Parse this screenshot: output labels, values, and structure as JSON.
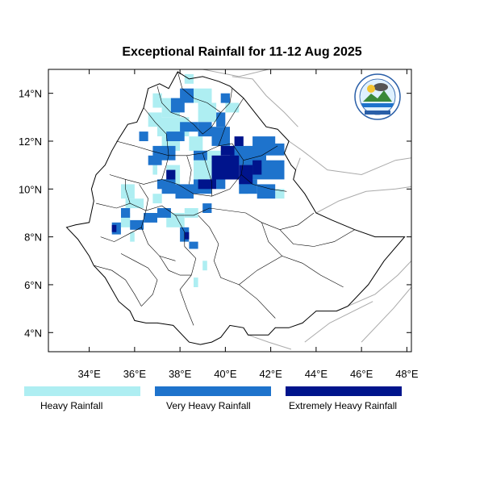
{
  "title": "Exceptional Rainfall for 11-12 Aug 2025",
  "map": {
    "lon_range": [
      32.2,
      48.2
    ],
    "lat_range": [
      3.2,
      15.0
    ],
    "x_ticks": [
      {
        "value": 34,
        "label": "34°E"
      },
      {
        "value": 36,
        "label": "36°E"
      },
      {
        "value": 38,
        "label": "38°E"
      },
      {
        "value": 40,
        "label": "40°E"
      },
      {
        "value": 42,
        "label": "42°E"
      },
      {
        "value": 44,
        "label": "44°E"
      },
      {
        "value": 46,
        "label": "46°E"
      },
      {
        "value": 48,
        "label": "48°E"
      }
    ],
    "y_ticks": [
      {
        "value": 4,
        "label": "4°N"
      },
      {
        "value": 6,
        "label": "6°N"
      },
      {
        "value": 8,
        "label": "8°N"
      },
      {
        "value": 10,
        "label": "10°N"
      },
      {
        "value": 12,
        "label": "12°N"
      },
      {
        "value": 14,
        "label": "14°N"
      }
    ],
    "colors": {
      "heavy": "#aeeef2",
      "very_heavy": "#1e73cc",
      "extreme": "#00148c",
      "boundary": "#000000",
      "neighbor": "#aaaaaa"
    },
    "ethiopia_outline": [
      [
        33.0,
        8.4
      ],
      [
        33.4,
        8.5
      ],
      [
        34.0,
        8.6
      ],
      [
        34.2,
        9.5
      ],
      [
        34.1,
        10.0
      ],
      [
        34.3,
        10.6
      ],
      [
        34.7,
        11.0
      ],
      [
        35.0,
        11.6
      ],
      [
        35.3,
        12.1
      ],
      [
        35.7,
        12.7
      ],
      [
        36.1,
        12.8
      ],
      [
        36.4,
        13.4
      ],
      [
        36.6,
        14.2
      ],
      [
        37.1,
        14.4
      ],
      [
        37.5,
        14.2
      ],
      [
        37.9,
        14.9
      ],
      [
        38.4,
        14.6
      ],
      [
        39.0,
        14.7
      ],
      [
        39.7,
        14.5
      ],
      [
        40.2,
        14.3
      ],
      [
        40.8,
        13.8
      ],
      [
        41.3,
        13.2
      ],
      [
        41.8,
        12.6
      ],
      [
        42.3,
        12.5
      ],
      [
        42.8,
        12.0
      ],
      [
        42.6,
        11.5
      ],
      [
        42.9,
        11.0
      ],
      [
        43.1,
        10.8
      ],
      [
        43.0,
        10.4
      ],
      [
        43.5,
        9.8
      ],
      [
        44.0,
        9.0
      ],
      [
        44.7,
        8.7
      ],
      [
        45.7,
        8.3
      ],
      [
        46.6,
        8.0
      ],
      [
        47.9,
        8.0
      ],
      [
        47.0,
        7.0
      ],
      [
        46.3,
        6.0
      ],
      [
        45.4,
        5.1
      ],
      [
        44.9,
        4.9
      ],
      [
        44.0,
        4.9
      ],
      [
        43.4,
        4.4
      ],
      [
        42.8,
        4.2
      ],
      [
        42.2,
        4.2
      ],
      [
        41.9,
        3.9
      ],
      [
        41.5,
        3.9
      ],
      [
        41.0,
        3.9
      ],
      [
        40.8,
        4.2
      ],
      [
        40.2,
        4.3
      ],
      [
        39.8,
        3.8
      ],
      [
        39.4,
        3.6
      ],
      [
        38.9,
        3.5
      ],
      [
        38.4,
        3.6
      ],
      [
        37.7,
        4.3
      ],
      [
        37.0,
        4.4
      ],
      [
        36.5,
        4.4
      ],
      [
        36.0,
        4.5
      ],
      [
        35.8,
        4.9
      ],
      [
        35.3,
        5.3
      ],
      [
        34.7,
        6.3
      ],
      [
        34.2,
        6.8
      ],
      [
        34.0,
        7.2
      ],
      [
        33.5,
        7.9
      ],
      [
        33.0,
        8.4
      ]
    ],
    "admin_lines": [
      [
        [
          37.0,
          14.3
        ],
        [
          37.2,
          13.6
        ],
        [
          37.6,
          13.2
        ],
        [
          38.2,
          13.0
        ],
        [
          38.6,
          12.7
        ],
        [
          39.0,
          12.3
        ],
        [
          39.4,
          12.6
        ],
        [
          39.8,
          13.2
        ],
        [
          40.2,
          13.6
        ],
        [
          40.3,
          14.2
        ]
      ],
      [
        [
          35.2,
          12.0
        ],
        [
          36.0,
          11.8
        ],
        [
          36.7,
          11.6
        ],
        [
          37.5,
          11.4
        ],
        [
          38.3,
          11.4
        ],
        [
          39.0,
          11.5
        ],
        [
          39.7,
          11.8
        ],
        [
          40.3,
          11.9
        ]
      ],
      [
        [
          40.3,
          11.9
        ],
        [
          40.8,
          11.2
        ],
        [
          40.7,
          10.6
        ],
        [
          41.2,
          10.2
        ],
        [
          42.0,
          10.0
        ],
        [
          42.7,
          9.9
        ]
      ],
      [
        [
          34.9,
          10.6
        ],
        [
          35.6,
          10.4
        ],
        [
          36.4,
          10.2
        ],
        [
          37.2,
          10.4
        ],
        [
          37.9,
          10.2
        ],
        [
          38.6,
          9.8
        ],
        [
          39.4,
          9.7
        ],
        [
          40.2,
          10.0
        ],
        [
          40.7,
          10.6
        ]
      ],
      [
        [
          34.3,
          9.4
        ],
        [
          35.2,
          9.2
        ],
        [
          35.8,
          9.4
        ],
        [
          36.5,
          9.1
        ],
        [
          37.2,
          9.3
        ],
        [
          37.8,
          8.9
        ],
        [
          38.6,
          8.9
        ],
        [
          39.3,
          9.2
        ]
      ],
      [
        [
          36.2,
          10.2
        ],
        [
          36.6,
          9.6
        ],
        [
          36.5,
          9.1
        ],
        [
          36.3,
          8.4
        ],
        [
          36.6,
          7.7
        ],
        [
          37.1,
          7.2
        ],
        [
          37.8,
          7.0
        ]
      ],
      [
        [
          38.8,
          8.9
        ],
        [
          39.3,
          8.4
        ],
        [
          39.7,
          7.7
        ],
        [
          39.5,
          7.0
        ],
        [
          39.8,
          6.3
        ],
        [
          40.6,
          6.0
        ],
        [
          41.4,
          5.4
        ],
        [
          42.2,
          4.6
        ]
      ],
      [
        [
          39.3,
          9.2
        ],
        [
          40.1,
          9.1
        ],
        [
          40.9,
          9.0
        ],
        [
          41.6,
          8.6
        ],
        [
          42.4,
          8.3
        ],
        [
          43.2,
          8.5
        ],
        [
          43.9,
          9.0
        ]
      ],
      [
        [
          38.2,
          7.6
        ],
        [
          38.7,
          7.1
        ],
        [
          38.5,
          6.4
        ],
        [
          38.0,
          5.8
        ],
        [
          38.3,
          5.0
        ],
        [
          38.6,
          4.3
        ]
      ],
      [
        [
          35.4,
          7.3
        ],
        [
          36.0,
          7.0
        ],
        [
          36.6,
          6.7
        ],
        [
          37.0,
          6.2
        ],
        [
          36.8,
          5.6
        ],
        [
          36.3,
          5.1
        ]
      ],
      [
        [
          34.5,
          8.0
        ],
        [
          35.1,
          7.8
        ],
        [
          35.7,
          8.1
        ],
        [
          36.3,
          8.4
        ]
      ],
      [
        [
          37.1,
          7.2
        ],
        [
          37.5,
          6.6
        ],
        [
          38.0,
          6.4
        ],
        [
          38.5,
          6.4
        ]
      ],
      [
        [
          36.4,
          13.4
        ],
        [
          36.9,
          12.8
        ],
        [
          37.4,
          12.3
        ],
        [
          37.5,
          11.4
        ]
      ],
      [
        [
          38.3,
          11.4
        ],
        [
          38.5,
          10.8
        ],
        [
          38.4,
          10.2
        ]
      ],
      [
        [
          39.0,
          11.5
        ],
        [
          39.2,
          10.9
        ],
        [
          39.4,
          10.3
        ],
        [
          39.4,
          9.7
        ]
      ],
      [
        [
          41.6,
          8.6
        ],
        [
          41.9,
          7.8
        ],
        [
          42.5,
          7.2
        ],
        [
          43.4,
          6.9
        ],
        [
          44.2,
          6.4
        ],
        [
          45.2,
          5.9
        ]
      ],
      [
        [
          42.4,
          8.3
        ],
        [
          43.0,
          7.7
        ],
        [
          43.9,
          7.6
        ],
        [
          44.8,
          7.8
        ],
        [
          45.7,
          8.3
        ]
      ],
      [
        [
          40.6,
          6.0
        ],
        [
          41.4,
          6.6
        ],
        [
          42.5,
          7.2
        ]
      ],
      [
        [
          40.8,
          11.2
        ],
        [
          41.6,
          11.4
        ],
        [
          42.3,
          11.8
        ]
      ],
      [
        [
          34.2,
          6.8
        ],
        [
          35.0,
          6.6
        ],
        [
          35.6,
          6.2
        ],
        [
          36.0,
          5.6
        ],
        [
          36.3,
          5.1
        ]
      ],
      [
        [
          37.8,
          8.9
        ],
        [
          38.2,
          8.2
        ],
        [
          38.2,
          7.6
        ]
      ],
      [
        [
          35.8,
          9.4
        ],
        [
          35.6,
          10.0
        ],
        [
          35.6,
          10.4
        ]
      ],
      [
        [
          37.9,
          14.9
        ],
        [
          38.1,
          14.2
        ],
        [
          38.6,
          13.8
        ],
        [
          39.2,
          13.6
        ],
        [
          39.8,
          13.2
        ]
      ],
      [
        [
          37.2,
          10.4
        ],
        [
          37.4,
          11.0
        ],
        [
          37.5,
          11.4
        ]
      ],
      [
        [
          39.7,
          11.8
        ],
        [
          40.0,
          12.6
        ],
        [
          40.4,
          13.2
        ],
        [
          40.8,
          13.8
        ]
      ]
    ],
    "neighbor_lines": [
      [
        [
          40.3,
          14.7
        ],
        [
          41.2,
          14.6
        ],
        [
          41.8,
          13.9
        ],
        [
          42.6,
          13.2
        ],
        [
          43.2,
          12.6
        ]
      ],
      [
        [
          42.8,
          12.0
        ],
        [
          43.4,
          11.6
        ],
        [
          44.5,
          10.8
        ],
        [
          46.0,
          10.6
        ],
        [
          47.5,
          11.2
        ],
        [
          48.2,
          11.3
        ]
      ],
      [
        [
          43.1,
          10.8
        ],
        [
          43.3,
          11.3
        ]
      ],
      [
        [
          44.0,
          9.0
        ],
        [
          45.0,
          9.5
        ],
        [
          46.2,
          9.9
        ],
        [
          47.5,
          10.0
        ],
        [
          48.2,
          10.1
        ]
      ],
      [
        [
          41.0,
          3.9
        ],
        [
          41.9,
          3.6
        ],
        [
          42.9,
          3.3
        ]
      ],
      [
        [
          44.9,
          4.9
        ],
        [
          46.6,
          5.6
        ],
        [
          47.6,
          6.4
        ],
        [
          48.2,
          7.0
        ]
      ],
      [
        [
          43.5,
          3.6
        ],
        [
          44.6,
          4.4
        ],
        [
          46.5,
          5.3
        ]
      ],
      [
        [
          46.0,
          3.6
        ],
        [
          47.4,
          5.0
        ],
        [
          48.2,
          5.9
        ]
      ],
      [
        [
          39.0,
          15.0
        ],
        [
          40.6,
          14.7
        ],
        [
          41.9,
          15.0
        ]
      ]
    ],
    "rainfall_heavy": [
      [
        37.0,
        12.2,
        38.4,
        13.0
      ],
      [
        37.2,
        13.0,
        38.0,
        13.8
      ],
      [
        38.6,
        13.6,
        39.4,
        14.2
      ],
      [
        38.8,
        12.8,
        39.6,
        13.6
      ],
      [
        40.0,
        13.2,
        40.6,
        13.6
      ],
      [
        36.6,
        12.6,
        37.2,
        13.2
      ],
      [
        36.8,
        13.4,
        37.2,
        14.0
      ],
      [
        37.2,
        11.6,
        38.0,
        12.2
      ],
      [
        38.4,
        11.6,
        39.0,
        12.2
      ],
      [
        37.4,
        10.2,
        38.0,
        11.0
      ],
      [
        38.6,
        10.4,
        39.4,
        11.2
      ],
      [
        39.2,
        11.2,
        39.8,
        11.6
      ],
      [
        35.4,
        9.6,
        36.0,
        10.2
      ],
      [
        35.6,
        9.2,
        36.4,
        9.6
      ],
      [
        35.4,
        8.4,
        35.8,
        9.0
      ],
      [
        35.8,
        7.8,
        36.0,
        8.2
      ],
      [
        37.4,
        8.4,
        38.2,
        9.0
      ],
      [
        38.2,
        8.8,
        38.8,
        9.2
      ],
      [
        36.8,
        9.4,
        37.2,
        9.8
      ],
      [
        39.0,
        6.6,
        39.2,
        7.0
      ],
      [
        38.6,
        5.9,
        38.8,
        6.3
      ],
      [
        40.6,
        9.8,
        41.0,
        10.2
      ],
      [
        42.2,
        9.6,
        42.6,
        10.0
      ],
      [
        38.2,
        14.4,
        38.6,
        14.8
      ],
      [
        36.8,
        10.6,
        37.0,
        11.0
      ]
    ],
    "rainfall_very_heavy": [
      [
        36.8,
        11.2,
        37.8,
        11.8
      ],
      [
        37.4,
        12.0,
        38.2,
        12.4
      ],
      [
        38.0,
        12.4,
        38.8,
        12.8
      ],
      [
        38.8,
        12.2,
        39.4,
        12.8
      ],
      [
        39.4,
        11.8,
        40.2,
        12.6
      ],
      [
        40.2,
        11.0,
        41.8,
        11.8
      ],
      [
        41.2,
        11.8,
        42.2,
        12.2
      ],
      [
        41.6,
        11.4,
        42.6,
        11.9
      ],
      [
        40.8,
        10.4,
        42.6,
        11.2
      ],
      [
        40.6,
        9.8,
        41.4,
        10.4
      ],
      [
        41.4,
        9.6,
        42.2,
        10.2
      ],
      [
        38.6,
        9.8,
        39.4,
        10.4
      ],
      [
        37.8,
        9.6,
        38.6,
        10.2
      ],
      [
        37.2,
        9.8,
        37.8,
        10.4
      ],
      [
        36.6,
        11.0,
        37.2,
        11.4
      ],
      [
        37.6,
        13.2,
        38.2,
        13.8
      ],
      [
        38.0,
        13.6,
        38.6,
        14.2
      ],
      [
        39.8,
        13.6,
        40.2,
        14.0
      ],
      [
        39.6,
        12.6,
        40.0,
        13.2
      ],
      [
        38.6,
        11.2,
        39.2,
        11.6
      ],
      [
        35.4,
        8.8,
        35.8,
        9.2
      ],
      [
        35.0,
        8.1,
        35.4,
        8.6
      ],
      [
        35.8,
        8.3,
        36.4,
        8.7
      ],
      [
        36.4,
        8.6,
        37.0,
        9.0
      ],
      [
        37.0,
        8.8,
        37.6,
        9.2
      ],
      [
        38.0,
        7.8,
        38.4,
        8.4
      ],
      [
        38.4,
        7.5,
        38.8,
        7.8
      ],
      [
        39.0,
        9.0,
        39.4,
        9.4
      ],
      [
        39.6,
        10.0,
        40.0,
        10.4
      ],
      [
        37.0,
        10.0,
        37.4,
        10.4
      ],
      [
        36.2,
        12.0,
        36.6,
        12.4
      ]
    ],
    "rainfall_extreme": [
      [
        39.4,
        10.4,
        40.6,
        11.4
      ],
      [
        40.6,
        10.2,
        41.2,
        11.0
      ],
      [
        38.8,
        10.0,
        39.6,
        10.4
      ],
      [
        39.8,
        11.4,
        40.4,
        11.8
      ],
      [
        41.2,
        10.6,
        41.6,
        11.2
      ],
      [
        35.0,
        8.2,
        35.2,
        8.5
      ],
      [
        38.2,
        7.9,
        38.4,
        8.2
      ],
      [
        37.4,
        10.4,
        37.8,
        10.8
      ],
      [
        40.4,
        11.8,
        40.8,
        12.2
      ]
    ]
  },
  "legend": {
    "heavy_label": "Heavy Rainfall",
    "very_heavy_label": "Very Heavy Rainfall",
    "extreme_label": "Extremely Heavy Rainfall"
  }
}
